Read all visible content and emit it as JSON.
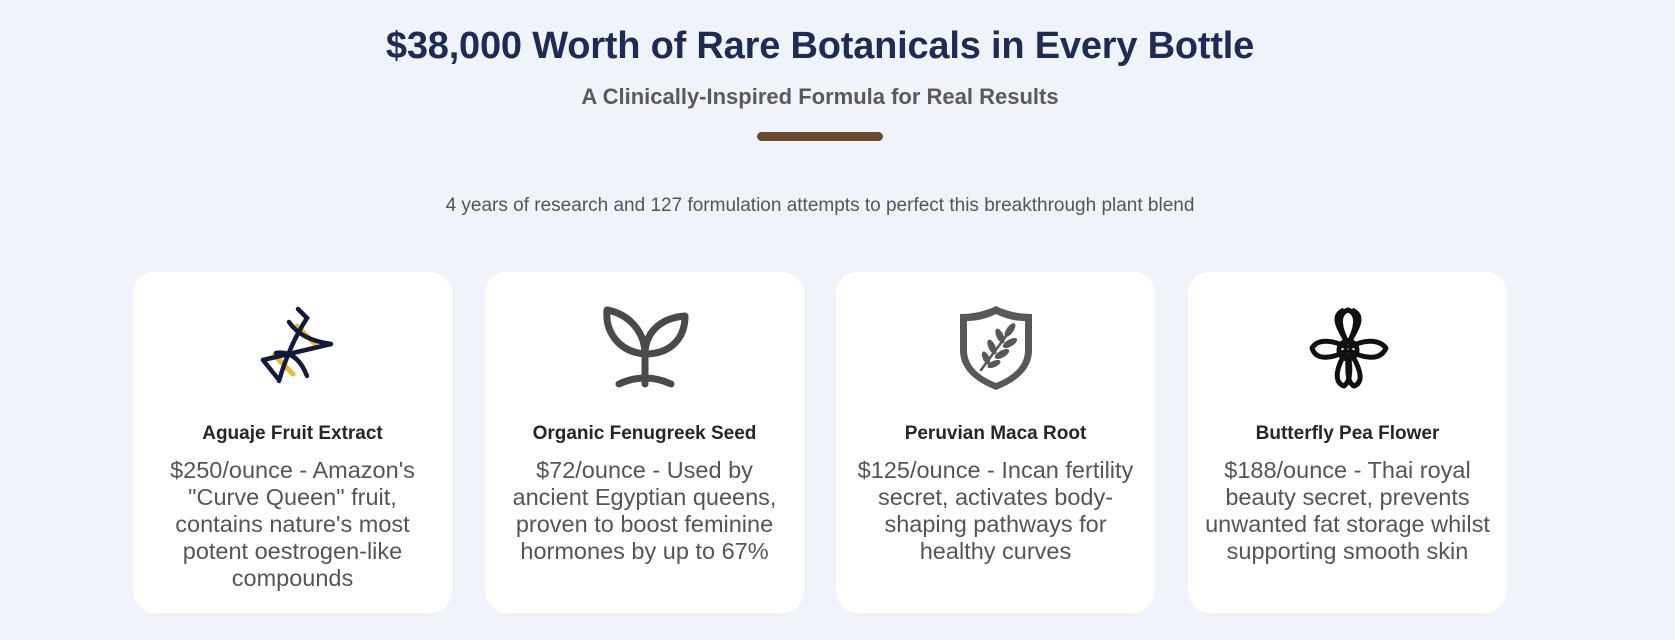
{
  "header": {
    "title": "$38,000 Worth of Rare Botanicals in Every Bottle",
    "subtitle": "A Clinically-Inspired Formula for Real Results",
    "accent_color": "#6b4a2b"
  },
  "tagline": "4 years of research and 127 formulation attempts to perfect this breakthrough plant blend",
  "cards": [
    {
      "icon": "dna-icon",
      "name": "Aguaje Fruit Extract",
      "description": "$250/ounce - Amazon's \"Curve Queen\" fruit, contains nature's most potent oestrogen-like compounds"
    },
    {
      "icon": "sprout-icon",
      "name": "Organic Fenugreek Seed",
      "description": "$72/ounce - Used by ancient Egyptian queens, proven to boost feminine hormones by up to 67%"
    },
    {
      "icon": "leaf-shield-icon",
      "name": "Peruvian Maca Root",
      "description": "$125/ounce - Incan fertility secret, activates body-shaping pathways for healthy curves"
    },
    {
      "icon": "flower-icon",
      "name": "Butterfly Pea Flower",
      "description": "$188/ounce - Thai royal beauty secret, prevents unwanted fat storage whilst supporting smooth skin"
    }
  ]
}
